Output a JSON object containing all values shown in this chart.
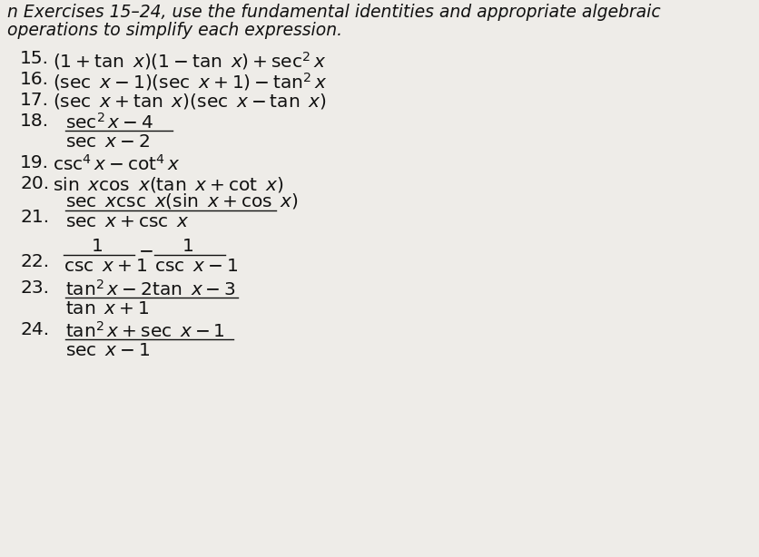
{
  "background_color": "#eeece8",
  "text_color": "#111111",
  "header_line1": "n Exercises 15–24, use the fundamental identities and appropriate algebraic",
  "header_line2": "operations to simplify each expression.",
  "header_fontsize": 13.5,
  "item_fontsize": 14.5,
  "fig_width": 8.37,
  "fig_height": 6.14
}
